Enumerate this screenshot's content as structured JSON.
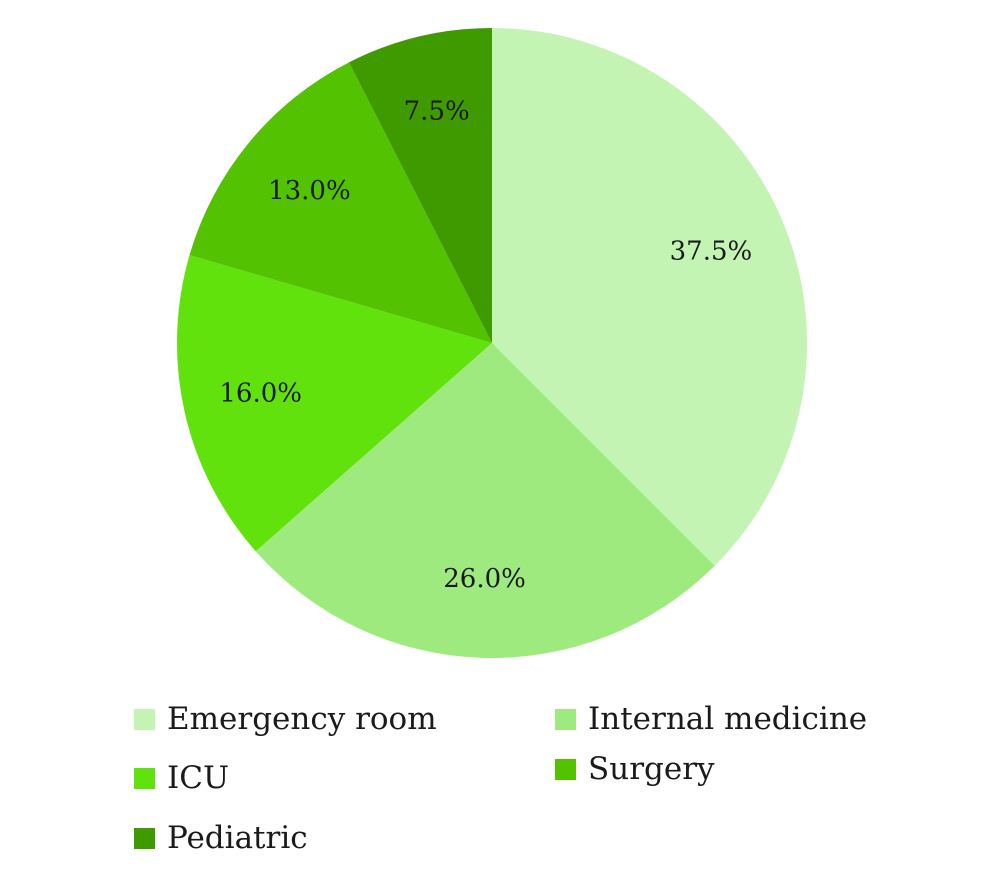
{
  "chart_data": {
    "type": "pie",
    "title": "",
    "slices": [
      {
        "label": "Emergency room",
        "value": 37.5,
        "display": "37.5%",
        "color": "#c3f4b3"
      },
      {
        "label": "Internal medicine",
        "value": 26.0,
        "display": "26.0%",
        "color": "#9fea7e"
      },
      {
        "label": "ICU",
        "value": 16.0,
        "display": "16.0%",
        "color": "#62e20d"
      },
      {
        "label": "Surgery",
        "value": 13.0,
        "display": "13.0%",
        "color": "#53c200"
      },
      {
        "label": "Pediatric",
        "value": 7.5,
        "display": "7.5%",
        "color": "#3f9a00"
      }
    ],
    "start_angle": "12 o'clock",
    "direction": "clockwise",
    "legend_position": "bottom"
  }
}
